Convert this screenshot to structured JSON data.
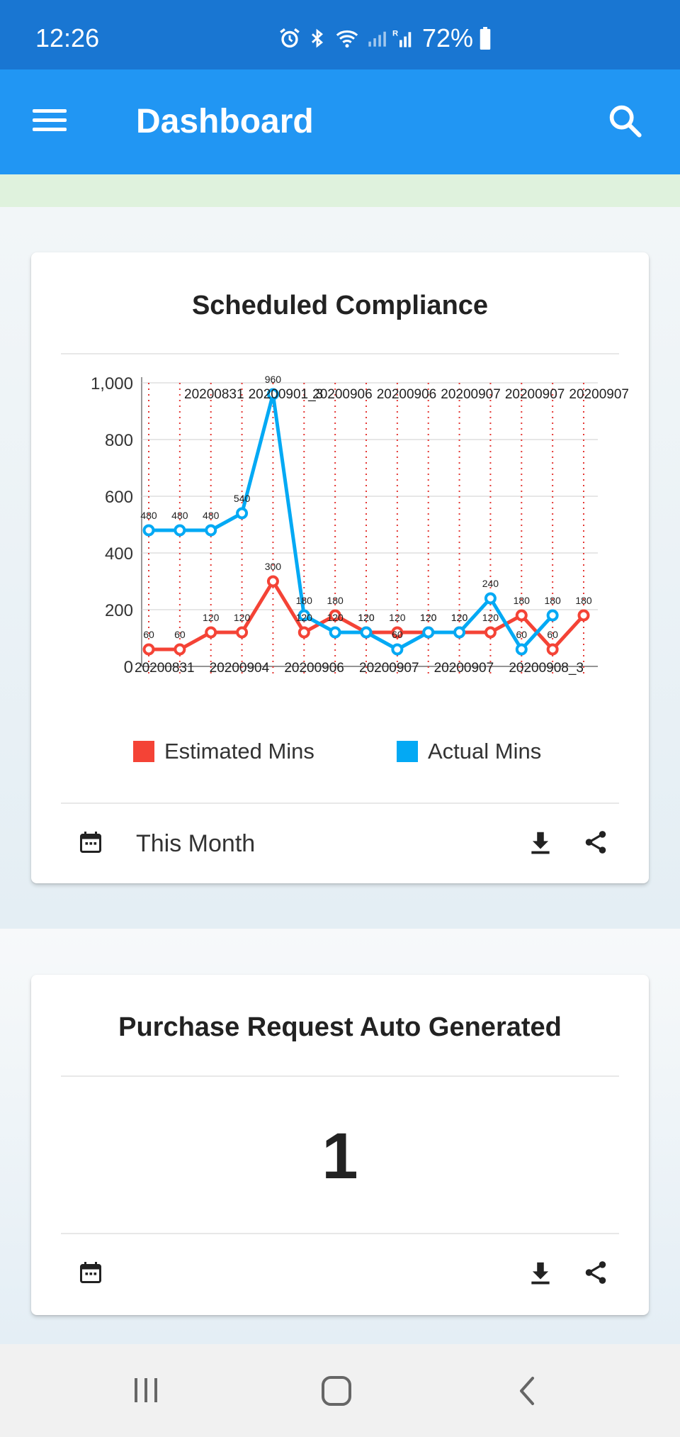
{
  "status_bar": {
    "time": "12:26",
    "battery": "72%",
    "icons": [
      "alarm-icon",
      "bluetooth-icon",
      "wifi-icon",
      "signal-icon",
      "roaming-signal-icon",
      "battery-icon"
    ]
  },
  "app_bar": {
    "title": "Dashboard",
    "icons": [
      "menu-icon",
      "search-icon"
    ]
  },
  "cards": [
    {
      "title": "Scheduled Compliance",
      "period_label": "This Month",
      "footer_icons": [
        "calendar-icon",
        "download-icon",
        "share-icon"
      ]
    },
    {
      "title": "Purchase Request Auto Generated",
      "value": "1",
      "footer_icons": [
        "calendar-icon",
        "download-icon",
        "share-icon"
      ]
    }
  ],
  "chart_data": {
    "type": "line",
    "title": "Scheduled Compliance",
    "ylim": [
      0,
      1000
    ],
    "yticks": [
      "0",
      "200",
      "400",
      "600",
      "800",
      "1,000"
    ],
    "grid": true,
    "legend_position": "bottom",
    "top_labels": [
      "20200831",
      "20200901_3",
      "20200906",
      "20200906",
      "20200907",
      "20200907",
      "20200907"
    ],
    "bottom_labels": [
      "20200831",
      "20200904",
      "20200906",
      "20200907",
      "20200907",
      "20200908_3"
    ],
    "series": [
      {
        "name": "Estimated Mins",
        "color": "#f44336",
        "values": [
          60,
          60,
          120,
          120,
          300,
          120,
          180,
          120,
          120,
          120,
          120,
          120,
          180,
          60,
          180
        ]
      },
      {
        "name": "Actual Mins",
        "color": "#03a9f4",
        "values": [
          480,
          480,
          480,
          540,
          960,
          180,
          120,
          120,
          60,
          120,
          120,
          240,
          60,
          180
        ]
      }
    ]
  },
  "nav_bar": {
    "icons": [
      "recent-apps-icon",
      "home-icon",
      "back-icon"
    ]
  }
}
